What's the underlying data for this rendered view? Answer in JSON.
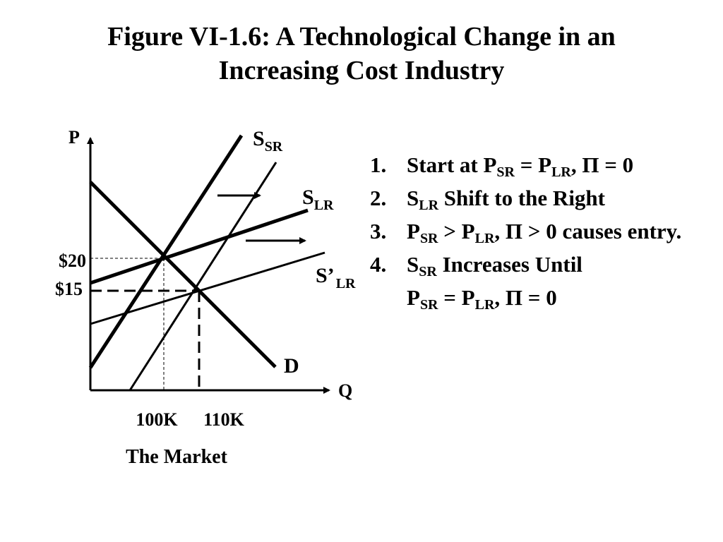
{
  "title": {
    "line1": "Figure VI-1.6: A Technological Change in an",
    "line2": "Increasing Cost Industry"
  },
  "graph": {
    "axis_y_label": "P",
    "axis_x_label": "Q",
    "curves": {
      "ssr_main": "S",
      "ssr_sub": "SR",
      "slr_main": "S",
      "slr_sub": "LR",
      "slr2_main": "S’",
      "slr2_sub": "LR",
      "demand": "D"
    },
    "price_labels": [
      "$20",
      "$15"
    ],
    "quantity_labels": [
      "100K",
      "110K"
    ],
    "caption": "The Market"
  },
  "steps": [
    {
      "num": "1.",
      "parts": [
        {
          "t": "Start at P"
        },
        {
          "t": "SR",
          "sub": true
        },
        {
          "t": " = P"
        },
        {
          "t": "LR",
          "sub": true
        },
        {
          "t": ", Π = 0"
        }
      ]
    },
    {
      "num": "2.",
      "parts": [
        {
          "t": "S"
        },
        {
          "t": "LR",
          "sub": true
        },
        {
          "t": " Shift to the Right"
        }
      ]
    },
    {
      "num": "3.",
      "parts": [
        {
          "t": "P"
        },
        {
          "t": "SR",
          "sub": true
        },
        {
          "t": " > P"
        },
        {
          "t": "LR",
          "sub": true
        },
        {
          "t": ", Π > 0 causes entry."
        }
      ]
    },
    {
      "num": "4.",
      "parts": [
        {
          "t": "S"
        },
        {
          "t": "SR",
          "sub": true
        },
        {
          "t": " Increases Until"
        },
        {
          "br": true
        },
        {
          "t": "P"
        },
        {
          "t": "SR",
          "sub": true
        },
        {
          "t": " = P"
        },
        {
          "t": "LR",
          "sub": true
        },
        {
          "t": ", Π = 0"
        }
      ]
    }
  ]
}
